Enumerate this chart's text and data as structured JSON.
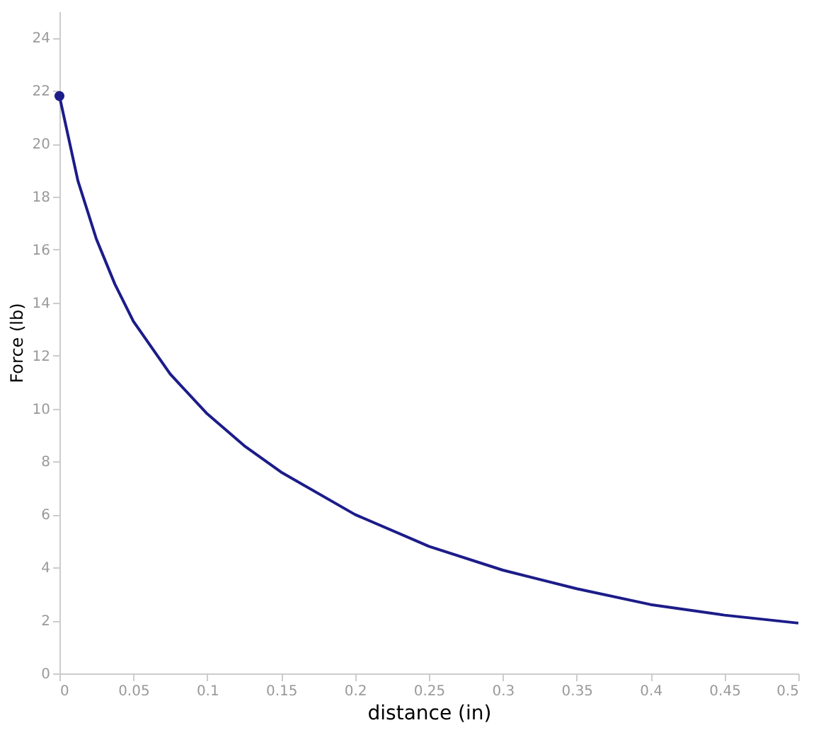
{
  "chart_data": {
    "type": "line",
    "xlabel": "distance (in)",
    "ylabel": "Force (lb)",
    "xlim": [
      0,
      0.5
    ],
    "xticks": [
      0,
      0.05,
      0.1,
      0.15,
      0.2,
      0.25,
      0.3,
      0.35,
      0.4,
      0.45,
      0.5
    ],
    "ylim": [
      0,
      25
    ],
    "yticks": [
      0,
      2,
      4,
      6,
      8,
      10,
      12,
      14,
      16,
      18,
      20,
      22,
      24
    ],
    "grid": false,
    "marker": "none",
    "line_style": "solid",
    "series": [
      {
        "color": "#1c1c8a",
        "x": [
          0,
          0.0125,
          0.025,
          0.0375,
          0.05,
          0.075,
          0.1,
          0.125,
          0.15,
          0.2,
          0.25,
          0.3,
          0.35,
          0.4,
          0.45,
          0.5
        ],
        "values": [
          21.8,
          18.6,
          16.4,
          14.7,
          13.3,
          11.3,
          9.8,
          8.6,
          7.6,
          6.0,
          4.8,
          3.9,
          3.2,
          2.6,
          2.2,
          1.9
        ]
      },
      {
        "type": "scatter",
        "color": "#1c1c8a",
        "marker": "circle",
        "x": [
          0
        ],
        "values": [
          21.8
        ]
      }
    ]
  }
}
